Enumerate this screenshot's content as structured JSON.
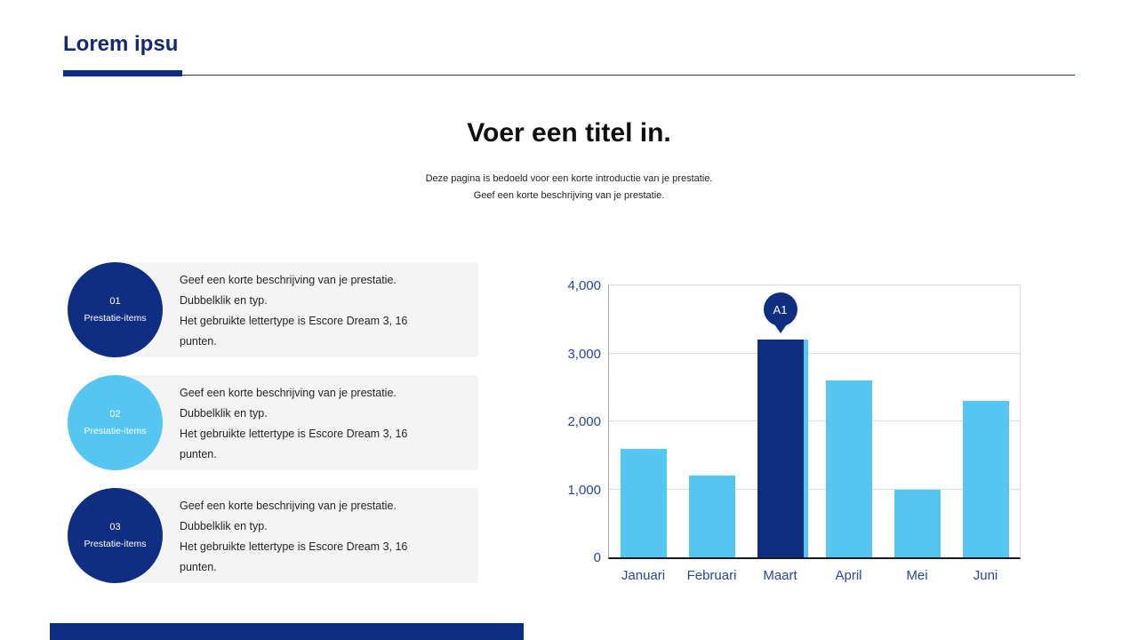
{
  "header": {
    "title": "Lorem ipsu"
  },
  "hero": {
    "title": "Voer een titel in.",
    "subtitle1": "Deze pagina is bedoeld voor een korte introductie van je prestatie.",
    "subtitle2": "Geef een korte beschrijving van je prestatie."
  },
  "list": {
    "items": [
      {
        "number": "01",
        "label": "Prestatie-items",
        "variant": "navy",
        "lines": [
          "Geef een korte beschrijving van je prestatie.",
          "Dubbelklik en typ.",
          "Het gebruikte lettertype is Escore Dream 3, 16",
          "punten."
        ]
      },
      {
        "number": "02",
        "label": "Prestatie-items",
        "variant": "sky",
        "lines": [
          "Geef een korte beschrijving van je prestatie.",
          "Dubbelklik en typ.",
          "Het gebruikte lettertype is Escore Dream 3, 16",
          "punten."
        ]
      },
      {
        "number": "03",
        "label": "Prestatie-items",
        "variant": "navy",
        "lines": [
          "Geef een korte beschrijving van je prestatie.",
          "Dubbelklik en typ.",
          "Het gebruikte lettertype is Escore Dream 3, 16",
          "punten."
        ]
      }
    ]
  },
  "chart_data": {
    "type": "bar",
    "title": "",
    "xlabel": "",
    "ylabel": "",
    "categories": [
      "Januari",
      "Februari",
      "Maart",
      "April",
      "Mei",
      "Juni"
    ],
    "values": [
      1600,
      1200,
      3200,
      2600,
      1000,
      2300
    ],
    "ylim": [
      0,
      4000
    ],
    "ytick_labels": [
      "0",
      "1,000",
      "2,000",
      "3,000",
      "4,000"
    ],
    "grid": true,
    "legend": false,
    "highlight": {
      "index": 2,
      "label": "A1"
    },
    "bar_color": "#55c6f2",
    "highlight_color": "#0f2e82"
  },
  "colors": {
    "navy": "#0f2e82",
    "sky": "#55c6f2",
    "list_box_bg": "#f4f4f4",
    "axis_label": "#2a4597",
    "gridline": "#dcdcdc",
    "text": "#242424"
  }
}
